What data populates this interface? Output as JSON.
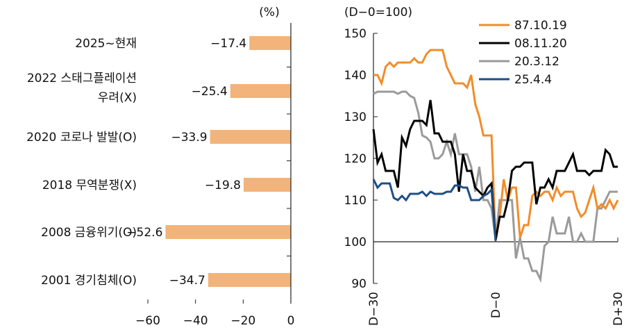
{
  "chart_data": [
    {
      "type": "bar",
      "orientation": "horizontal",
      "unit_label": "(%)",
      "categories": [
        [
          "2025~현재"
        ],
        [
          "2022 스태그플레이션",
          "우려(X)"
        ],
        [
          "2020 코로나 발발(O)"
        ],
        [
          "2018 무역분쟁(X)"
        ],
        [
          "2008 금융위기(O)"
        ],
        [
          "2001 경기침체(O)"
        ]
      ],
      "values": [
        -17.4,
        -25.4,
        -33.9,
        -19.8,
        -52.6,
        -34.7
      ],
      "value_labels": [
        "−17.4",
        "−25.4",
        "−33.9",
        "−19.8",
        "−52.6",
        "−34.7"
      ],
      "xlim": [
        -60,
        0
      ],
      "xticks": [
        -60,
        -40,
        -20,
        0
      ],
      "xtick_labels": [
        "−60",
        "−40",
        "−20",
        "0"
      ],
      "bar_color": "#f2b47a"
    },
    {
      "type": "line",
      "ylabel": "(D−0=100)",
      "ylim": [
        90,
        150
      ],
      "yticks": [
        90,
        100,
        110,
        120,
        130,
        140,
        150
      ],
      "xlim": [
        -30,
        30
      ],
      "xtick_values": [
        -30,
        0,
        30
      ],
      "xtick_labels": [
        "D−30",
        "D−0",
        "D+30"
      ],
      "legend_position": "top-right",
      "series": [
        {
          "name": "87.10.19",
          "color": "#f28c28",
          "x": [
            -30,
            -29,
            -28,
            -27,
            -26,
            -25,
            -24,
            -23,
            -22,
            -21,
            -20,
            -19,
            -18,
            -17,
            -16,
            -15,
            -14,
            -13,
            -12,
            -11,
            -10,
            -9,
            -8,
            -7,
            -6,
            -5,
            -4,
            -3,
            -2,
            -1,
            0,
            1,
            2,
            3,
            4,
            5,
            6,
            7,
            8,
            9,
            10,
            11,
            12,
            13,
            14,
            15,
            16,
            17,
            18,
            19,
            20,
            21,
            22,
            23,
            24,
            25,
            26,
            27,
            28,
            29,
            30
          ],
          "y": [
            140,
            140,
            138,
            142,
            143,
            142,
            143,
            143,
            143,
            143,
            144,
            143,
            143,
            145,
            146,
            146,
            146,
            146,
            142,
            140,
            138,
            138,
            138,
            137,
            140,
            133,
            130,
            125.5,
            125.5,
            125.5,
            100.4,
            106,
            115,
            110,
            113,
            113,
            101,
            104,
            104,
            111,
            112,
            111,
            112,
            112,
            110,
            113,
            111,
            112,
            112,
            112,
            108,
            106,
            107,
            110,
            113,
            108,
            109,
            108,
            110,
            108,
            110
          ]
        },
        {
          "name": "08.11.20",
          "color": "#000000",
          "x": [
            -30,
            -29,
            -28,
            -27,
            -26,
            -25,
            -24,
            -23,
            -22,
            -21,
            -20,
            -19,
            -18,
            -17,
            -16,
            -15,
            -14,
            -13,
            -12,
            -11,
            -10,
            -9,
            -8,
            -7,
            -6,
            -5,
            -4,
            -3,
            -2,
            -1,
            0,
            1,
            2,
            3,
            4,
            5,
            6,
            7,
            8,
            9,
            10,
            11,
            12,
            13,
            14,
            15,
            16,
            17,
            18,
            19,
            20,
            21,
            22,
            23,
            24,
            25,
            26,
            27,
            28,
            29,
            30
          ],
          "y": [
            127,
            119,
            121,
            117,
            117,
            117,
            113,
            125,
            123,
            127,
            129,
            129,
            129,
            128,
            134,
            126,
            126,
            124,
            124,
            124,
            121,
            112,
            121,
            117,
            117,
            113,
            112,
            111,
            113,
            114,
            100.4,
            106,
            106,
            110,
            117,
            118,
            118,
            119,
            119,
            119,
            109,
            113,
            113,
            115,
            113,
            117,
            117,
            117,
            119,
            121,
            117,
            117,
            117,
            116,
            117,
            117,
            117,
            122,
            121,
            118,
            118
          ]
        },
        {
          "name": "20.3.12",
          "color": "#9a9a9a",
          "x": [
            -30,
            -29,
            -28,
            -27,
            -26,
            -25,
            -24,
            -23,
            -22,
            -21,
            -20,
            -19,
            -18,
            -17,
            -16,
            -15,
            -14,
            -13,
            -12,
            -11,
            -10,
            -9,
            -8,
            -7,
            -6,
            -5,
            -4,
            -3,
            -2,
            -1,
            0,
            1,
            2,
            3,
            4,
            5,
            6,
            7,
            8,
            9,
            10,
            11,
            12,
            13,
            14,
            15,
            16,
            17,
            18,
            19,
            20,
            21,
            22,
            23,
            24,
            25,
            26,
            27,
            28,
            29,
            30
          ],
          "y": [
            135.5,
            136,
            136,
            136,
            136,
            136,
            135.5,
            136,
            136,
            135,
            134.5,
            131,
            125.5,
            125,
            124,
            120,
            120,
            121,
            124,
            121,
            126,
            121,
            121,
            121,
            118,
            112,
            118,
            110,
            110,
            108,
            100.5,
            110,
            110,
            110,
            110,
            96,
            101,
            96,
            96,
            93,
            93,
            91,
            99,
            100,
            106,
            102,
            102,
            102,
            106,
            100,
            100,
            102,
            100,
            100,
            100,
            108,
            108,
            110,
            112,
            112,
            112
          ]
        },
        {
          "name": "25.4.4",
          "color": "#1f4e86",
          "x": [
            -30,
            -29,
            -28,
            -27,
            -26,
            -25,
            -24,
            -23,
            -22,
            -21,
            -20,
            -19,
            -18,
            -17,
            -16,
            -15,
            -14,
            -13,
            -12,
            -11,
            -10,
            -9,
            -8,
            -7,
            -6,
            -5,
            -4,
            -3,
            -2,
            -1,
            0
          ],
          "y": [
            115,
            113,
            114,
            114,
            114,
            110.5,
            110,
            111,
            110,
            111.5,
            111.5,
            111.5,
            112,
            111,
            112,
            111.5,
            111.5,
            111.5,
            112,
            112,
            113.5,
            113.5,
            113,
            113,
            110,
            110,
            110,
            111,
            111.5,
            112.5,
            100.2
          ]
        }
      ]
    }
  ]
}
